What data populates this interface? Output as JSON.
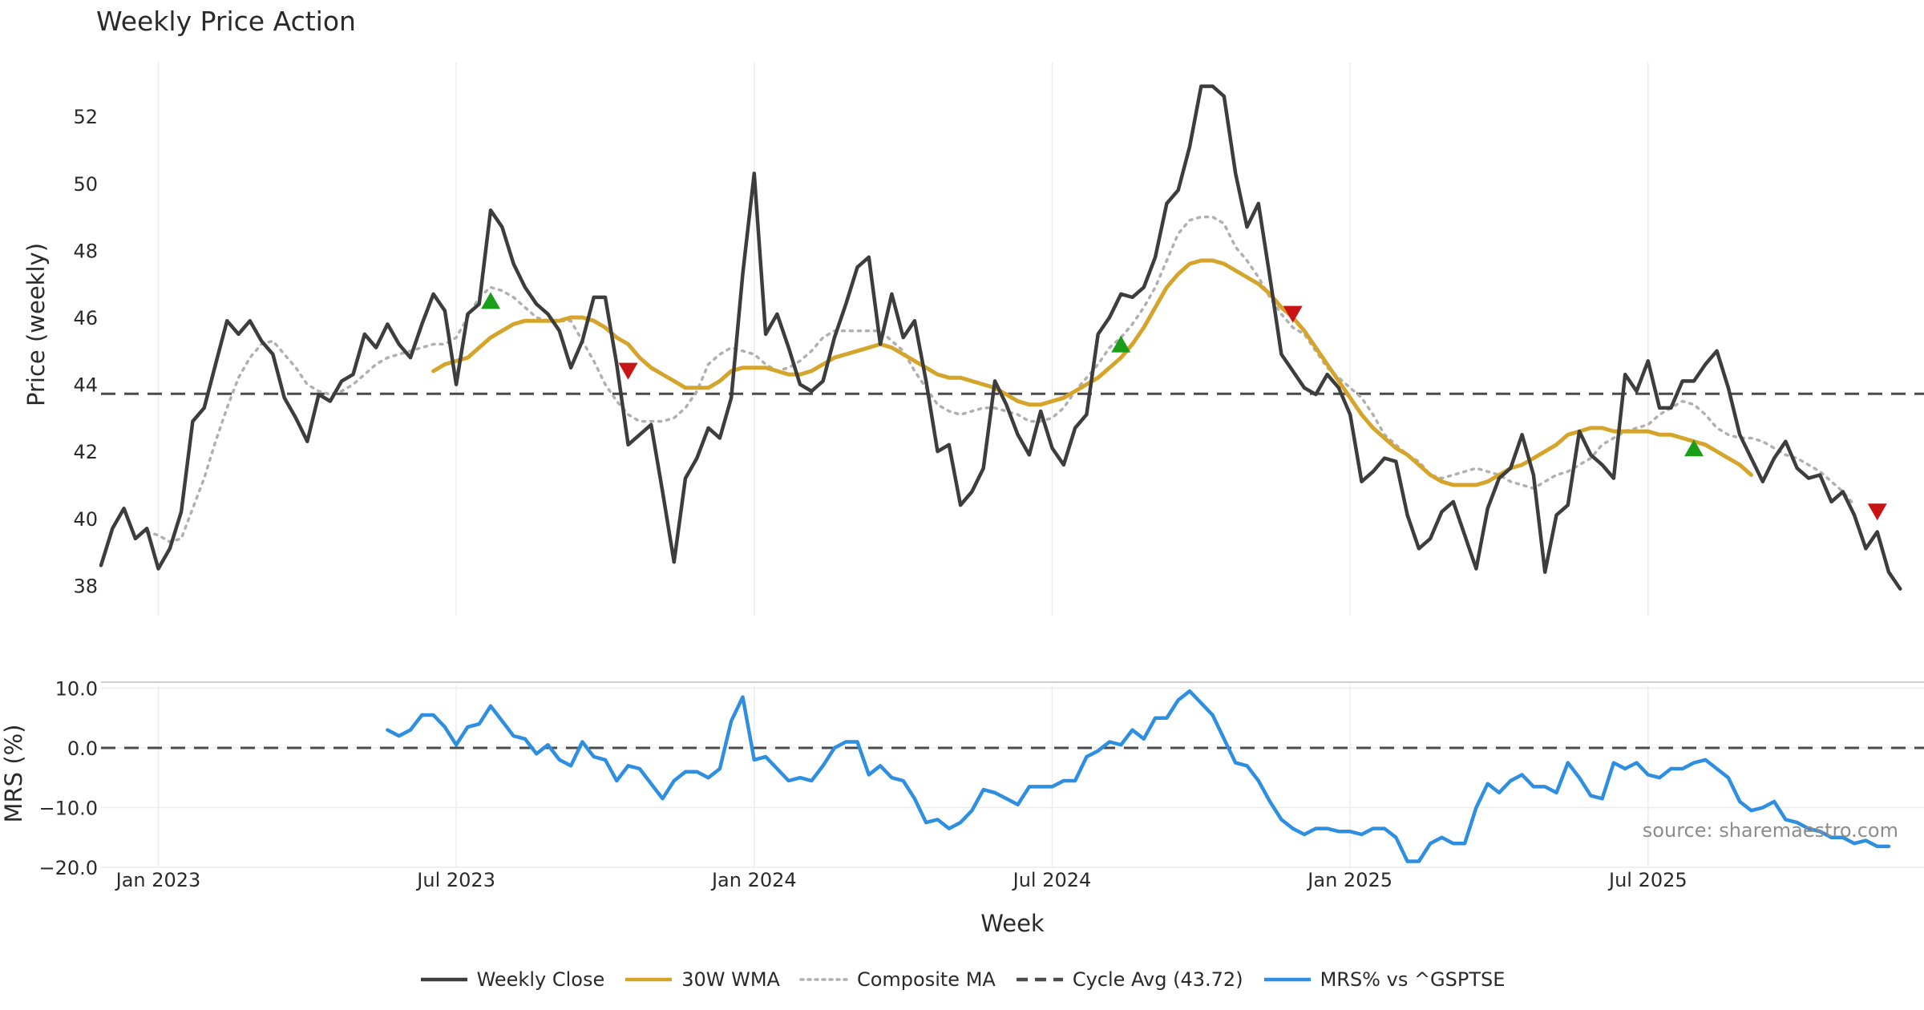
{
  "chart_data": [
    {
      "type": "line",
      "title": "Weekly Price Action",
      "ylabel": "Price (weekly)",
      "xlabel": "",
      "ylim": [
        37.1,
        53.8
      ],
      "yticks": [
        38,
        40,
        42,
        44,
        46,
        48,
        50,
        52
      ],
      "x_start": "2022-11-28",
      "x_step_weeks": 1,
      "series": [
        {
          "name": "Weekly Close",
          "color": "#3d3d3d",
          "start_index": 0,
          "values": [
            38.6,
            39.7,
            40.3,
            39.4,
            39.7,
            38.5,
            39.1,
            40.2,
            42.9,
            43.3,
            44.6,
            45.9,
            45.5,
            45.9,
            45.3,
            44.9,
            43.6,
            43.0,
            42.3,
            43.7,
            43.5,
            44.1,
            44.3,
            45.5,
            45.1,
            45.8,
            45.2,
            44.8,
            45.8,
            46.7,
            46.2,
            44.0,
            46.1,
            46.4,
            49.2,
            48.7,
            47.6,
            46.9,
            46.4,
            46.1,
            45.6,
            44.5,
            45.3,
            46.6,
            46.6,
            44.6,
            42.2,
            42.5,
            42.8,
            40.8,
            38.7,
            41.2,
            41.8,
            42.7,
            42.4,
            43.6,
            47.3,
            50.3,
            45.5,
            46.1,
            45.1,
            44.0,
            43.8,
            44.1,
            45.4,
            46.4,
            47.5,
            47.8,
            45.2,
            46.7,
            45.4,
            45.9,
            44.1,
            42.0,
            42.2,
            40.4,
            40.8,
            41.5,
            44.1,
            43.4,
            42.5,
            41.9,
            43.2,
            42.1,
            41.6,
            42.7,
            43.1,
            45.5,
            46.0,
            46.7,
            46.6,
            46.9,
            47.8,
            49.4,
            49.8,
            51.1,
            52.9,
            52.9,
            52.6,
            50.3,
            48.7,
            49.4,
            47.2,
            44.9,
            44.4,
            43.9,
            43.7,
            44.3,
            43.9,
            43.1,
            41.1,
            41.4,
            41.8,
            41.7,
            40.1,
            39.1,
            39.4,
            40.2,
            40.5,
            39.5,
            38.5,
            40.3,
            41.2,
            41.5,
            42.5,
            41.3,
            38.4,
            40.1,
            40.4,
            42.6,
            41.9,
            41.6,
            41.2,
            44.3,
            43.8,
            44.7,
            43.3,
            43.3,
            44.1,
            44.1,
            44.6,
            45.0,
            43.9,
            42.5,
            41.8,
            41.1,
            41.8,
            42.3,
            41.5,
            41.2,
            41.3,
            40.5,
            40.8,
            40.1,
            39.1,
            39.6,
            38.4,
            37.9
          ]
        },
        {
          "name": "30W WMA",
          "color": "#d4a52a",
          "start_index": 29,
          "values": [
            44.4,
            44.6,
            44.7,
            44.8,
            45.1,
            45.4,
            45.6,
            45.8,
            45.9,
            45.9,
            45.9,
            45.9,
            46.0,
            46.0,
            45.9,
            45.7,
            45.4,
            45.2,
            44.8,
            44.5,
            44.3,
            44.1,
            43.9,
            43.9,
            43.9,
            44.1,
            44.4,
            44.5,
            44.5,
            44.5,
            44.4,
            44.3,
            44.3,
            44.4,
            44.6,
            44.8,
            44.9,
            45.0,
            45.1,
            45.2,
            45.1,
            44.9,
            44.7,
            44.5,
            44.3,
            44.2,
            44.2,
            44.1,
            44.0,
            43.9,
            43.7,
            43.5,
            43.4,
            43.4,
            43.5,
            43.6,
            43.8,
            44.0,
            44.2,
            44.5,
            44.8,
            45.2,
            45.7,
            46.3,
            46.9,
            47.3,
            47.6,
            47.7,
            47.7,
            47.6,
            47.4,
            47.2,
            47.0,
            46.7,
            46.3,
            46.0,
            45.6,
            45.1,
            44.6,
            44.1,
            43.6,
            43.1,
            42.7,
            42.4,
            42.1,
            41.9,
            41.6,
            41.3,
            41.1,
            41.0,
            41.0,
            41.0,
            41.1,
            41.3,
            41.5,
            41.6,
            41.8,
            42.0,
            42.2,
            42.5,
            42.6,
            42.7,
            42.7,
            42.6,
            42.6,
            42.6,
            42.6,
            42.5,
            42.5,
            42.4,
            42.3,
            42.2,
            42.0,
            41.8,
            41.6,
            41.3
          ]
        },
        {
          "name": "Composite MA",
          "color": "#b0b0b0",
          "start_index": 4,
          "values": [
            39.6,
            39.5,
            39.3,
            39.4,
            40.3,
            41.2,
            42.3,
            43.3,
            44.2,
            44.8,
            45.2,
            45.3,
            44.9,
            44.5,
            44.0,
            43.8,
            43.7,
            43.8,
            44.0,
            44.3,
            44.6,
            44.8,
            44.9,
            45.0,
            45.1,
            45.2,
            45.2,
            45.4,
            46.0,
            46.6,
            46.9,
            46.8,
            46.6,
            46.3,
            46.0,
            45.9,
            45.9,
            45.9,
            45.3,
            44.7,
            44.0,
            43.5,
            43.1,
            42.9,
            42.9,
            42.9,
            43.0,
            43.3,
            43.8,
            44.6,
            44.9,
            45.1,
            45.0,
            44.9,
            44.6,
            44.4,
            44.5,
            44.7,
            45.0,
            45.4,
            45.6,
            45.6,
            45.6,
            45.6,
            45.6,
            45.3,
            45.0,
            44.4,
            43.9,
            43.4,
            43.2,
            43.1,
            43.2,
            43.3,
            43.3,
            43.2,
            43.1,
            42.9,
            42.9,
            43.0,
            43.3,
            43.8,
            44.2,
            44.6,
            45.1,
            45.4,
            45.8,
            46.3,
            46.9,
            47.7,
            48.5,
            48.9,
            49.0,
            49.0,
            48.8,
            48.1,
            47.7,
            47.2,
            46.6,
            46.1,
            45.7,
            45.5,
            45.0,
            44.5,
            44.2,
            43.9,
            43.6,
            43.1,
            42.5,
            42.2,
            41.9,
            41.7,
            41.3,
            41.2,
            41.3,
            41.4,
            41.5,
            41.4,
            41.3,
            41.1,
            41.0,
            40.9,
            41.1,
            41.3,
            41.4,
            41.6,
            41.8,
            42.2,
            42.4,
            42.6,
            42.7,
            42.8,
            43.1,
            43.3,
            43.5,
            43.4,
            43.1,
            42.7,
            42.5,
            42.4,
            42.4,
            42.3,
            42.1,
            41.9,
            41.8,
            41.6,
            41.4,
            41.1,
            40.8,
            40.4
          ]
        },
        {
          "name": "Cycle Avg (43.72)",
          "color": "#4a4a4a",
          "constant": 43.72
        }
      ],
      "markers": [
        {
          "kind": "buy",
          "color": "#1a9e1a",
          "index": 34,
          "value": 46.5
        },
        {
          "kind": "sell",
          "color": "#c81414",
          "index": 46,
          "value": 44.4
        },
        {
          "kind": "buy",
          "color": "#1a9e1a",
          "index": 89,
          "value": 45.2
        },
        {
          "kind": "sell",
          "color": "#c81414",
          "index": 104,
          "value": 46.1
        },
        {
          "kind": "buy",
          "color": "#1a9e1a",
          "index": 139,
          "value": 42.1
        },
        {
          "kind": "sell",
          "color": "#c81414",
          "index": 155,
          "value": 40.2
        }
      ]
    },
    {
      "type": "line",
      "title": "",
      "ylabel": "MRS (%)",
      "xlabel": "Week",
      "ylim": [
        -20.0,
        11.0
      ],
      "yticks": [
        10.0,
        0.0,
        -10.0,
        -20.0
      ],
      "ytick_labels": [
        "10.0",
        "0.0",
        "−10.0",
        "−20.0"
      ],
      "x_tick_labels": [
        "Jan 2023",
        "Jul 2023",
        "Jan 2024",
        "Jul 2024",
        "Jan 2025",
        "Jul 2025"
      ],
      "x_tick_indices": [
        5,
        31,
        57,
        83,
        109,
        135
      ],
      "series": [
        {
          "name": "MRS% vs ^GSPTSE",
          "color": "#2e8fe0",
          "start_index": 25,
          "values": [
            3.0,
            2.0,
            3.0,
            5.5,
            5.5,
            3.5,
            0.5,
            3.5,
            4.0,
            7.0,
            4.5,
            2.0,
            1.5,
            -1.0,
            0.5,
            -2.0,
            -3.0,
            1.0,
            -1.5,
            -2.0,
            -5.5,
            -3.0,
            -3.5,
            -6.0,
            -8.5,
            -5.5,
            -4.0,
            -4.0,
            -5.0,
            -3.5,
            4.5,
            8.5,
            -2.0,
            -1.5,
            -3.5,
            -5.5,
            -5.0,
            -5.5,
            -3.0,
            0.0,
            1.0,
            1.0,
            -4.5,
            -3.0,
            -5.0,
            -5.5,
            -8.5,
            -12.5,
            -12.0,
            -13.5,
            -12.5,
            -10.5,
            -7.0,
            -7.5,
            -8.5,
            -9.5,
            -6.5,
            -6.5,
            -6.5,
            -5.5,
            -5.5,
            -1.5,
            -0.5,
            1.0,
            0.5,
            3.0,
            1.5,
            5.0,
            5.0,
            8.0,
            9.5,
            7.5,
            5.5,
            1.5,
            -2.5,
            -3.0,
            -5.5,
            -9.0,
            -12.0,
            -13.5,
            -14.5,
            -13.5,
            -13.5,
            -14.0,
            -14.0,
            -14.5,
            -13.5,
            -13.5,
            -15.0,
            -19.0,
            -19.0,
            -16.0,
            -15.0,
            -16.0,
            -16.0,
            -10.0,
            -6.0,
            -7.5,
            -5.5,
            -4.5,
            -6.5,
            -6.5,
            -7.5,
            -2.5,
            -5.0,
            -8.0,
            -8.5,
            -2.5,
            -3.5,
            -2.5,
            -4.5,
            -5.0,
            -3.5,
            -3.5,
            -2.5,
            -2.0,
            -3.5,
            -5.0,
            -9.0,
            -10.5,
            -10.0,
            -9.0,
            -12.0,
            -12.5,
            -13.5,
            -14.0,
            -15.0,
            -15.0,
            -16.0,
            -15.5,
            -16.5,
            -16.5
          ]
        },
        {
          "name": "zero",
          "color": "#4a4a4a",
          "constant": 0.0
        }
      ],
      "annotations": [
        "source: sharemaestro.com"
      ]
    }
  ],
  "legend": [
    {
      "label": "Weekly Close",
      "style": "solid",
      "color": "#3d3d3d"
    },
    {
      "label": "30W WMA",
      "style": "solid",
      "color": "#d4a52a"
    },
    {
      "label": "Composite MA",
      "style": "dotted",
      "color": "#b0b0b0"
    },
    {
      "label": "Cycle Avg (43.72)",
      "style": "dashed",
      "color": "#4a4a4a"
    },
    {
      "label": "MRS% vs ^GSPTSE",
      "style": "solid",
      "color": "#2e8fe0"
    }
  ]
}
